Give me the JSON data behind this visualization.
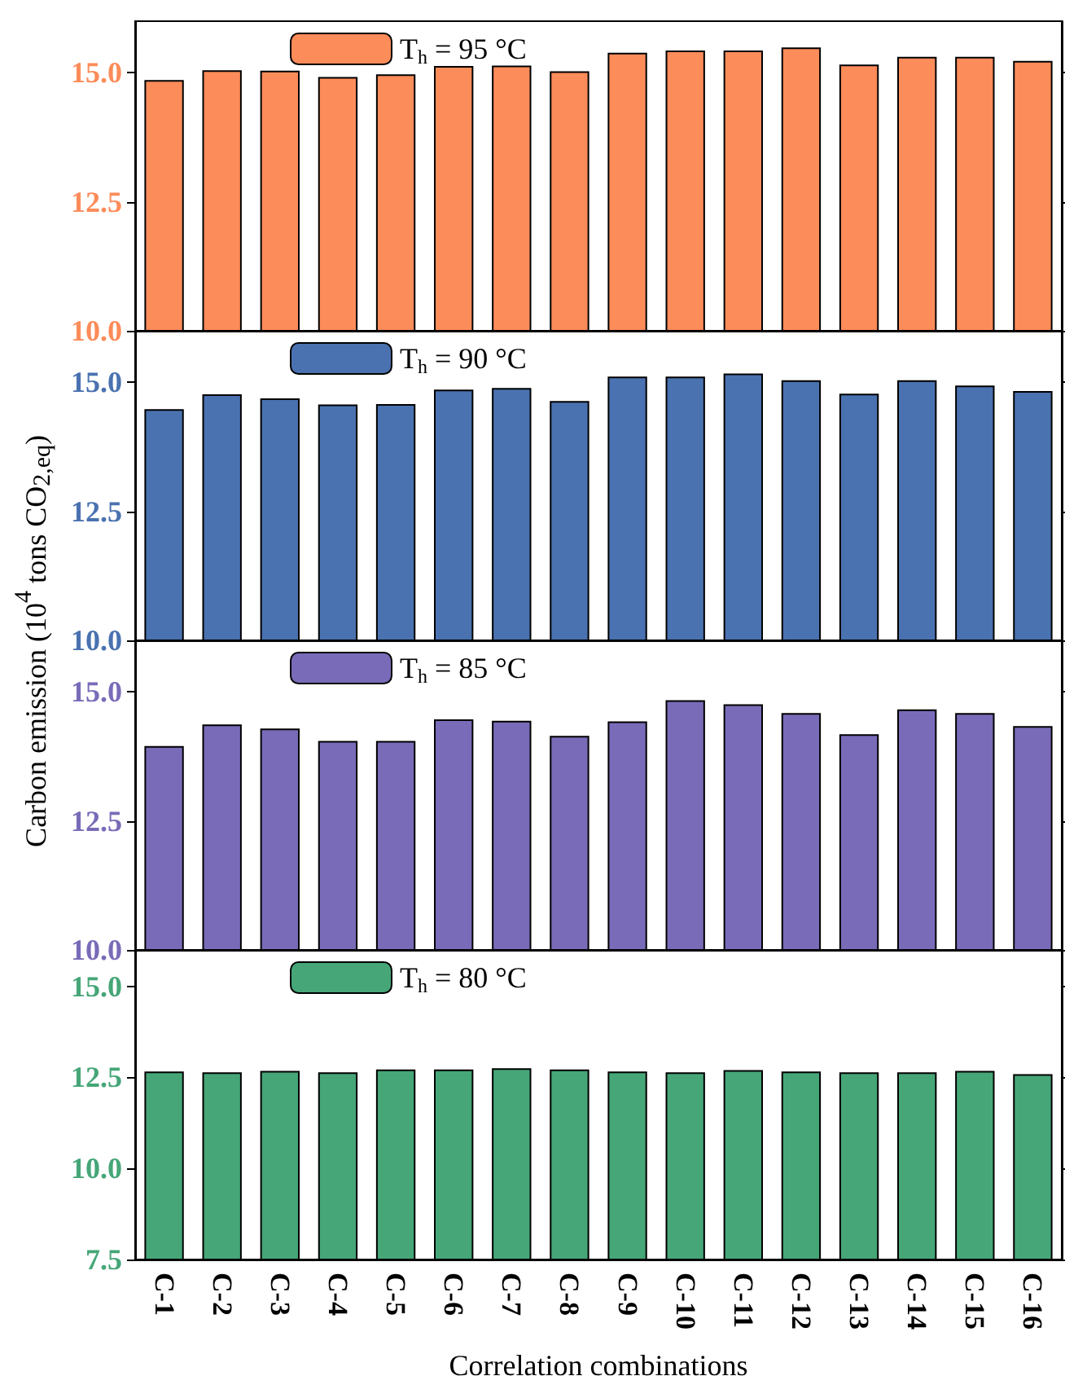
{
  "chart_data": [
    {
      "type": "bar",
      "categories": [
        null,
        null,
        null,
        null,
        null,
        null,
        null,
        null,
        null,
        null,
        null,
        null,
        null,
        null,
        null,
        null
      ],
      "series": [
        {
          "name": "T$_{h}$ = 95 °C",
          "color": "#fc8c5a",
          "values": [
            14.86,
            15.05,
            15.04,
            14.92,
            14.97,
            15.13,
            15.14,
            15.03,
            15.39,
            15.43,
            15.43,
            15.49,
            15.16,
            15.31,
            15.31,
            15.23
          ]
        }
      ],
      "ylim": [
        10,
        16
      ],
      "yticks": [
        {
          "value": 10,
          "label": "10.0"
        },
        {
          "value": 12.5,
          "label": "12.5"
        },
        {
          "value": 15,
          "label": "15.0"
        }
      ],
      "legend": "top left",
      "grid": false
    },
    {
      "type": "bar",
      "ylabel": "Carbon emission (10$^{4}$ tons CO$_{2,eq}$)",
      "categories": [
        null,
        null,
        null,
        null,
        null,
        null,
        null,
        null,
        null,
        null,
        null,
        null,
        null,
        null,
        null,
        null
      ],
      "series": [
        {
          "name": "T$_{h}$ = 90 °C",
          "color": "#4a72b0",
          "values": [
            14.48,
            14.77,
            14.69,
            14.57,
            14.58,
            14.86,
            14.89,
            14.64,
            15.11,
            15.11,
            15.17,
            15.04,
            14.78,
            15.04,
            14.94,
            14.83
          ]
        }
      ],
      "ylim": [
        10,
        16
      ],
      "yticks": [
        {
          "value": 10,
          "label": "10.0"
        },
        {
          "value": 12.5,
          "label": "12.5"
        },
        {
          "value": 15,
          "label": "15.0"
        }
      ],
      "legend": "top left",
      "grid": false
    },
    {
      "type": "bar",
      "categories": [
        null,
        null,
        null,
        null,
        null,
        null,
        null,
        null,
        null,
        null,
        null,
        null,
        null,
        null,
        null,
        null
      ],
      "series": [
        {
          "name": "T$_{h}$ = 85 °C",
          "color": "#7a6bb8",
          "values": [
            13.95,
            14.37,
            14.29,
            14.05,
            14.05,
            14.47,
            14.44,
            14.15,
            14.43,
            14.84,
            14.76,
            14.59,
            14.18,
            14.66,
            14.59,
            14.34
          ]
        }
      ],
      "ylim": [
        10,
        16
      ],
      "yticks": [
        {
          "value": 10,
          "label": "10.0"
        },
        {
          "value": 12.5,
          "label": "12.5"
        },
        {
          "value": 15,
          "label": "15.0"
        }
      ],
      "legend": "top left",
      "grid": false
    },
    {
      "type": "bar",
      "xlabel": "Correlation combinations",
      "categories": [
        "C-1",
        "C-2",
        "C-3",
        "C-4",
        "C-5",
        "C-6",
        "C-7",
        "C-8",
        "C-9",
        "C-10",
        "C-11",
        "C-12",
        "C-13",
        "C-14",
        "C-15",
        "C-16"
      ],
      "series": [
        {
          "name": "T$_{h}$ = 80 °C",
          "color": "#46a678",
          "values": [
            12.66,
            12.64,
            12.68,
            12.64,
            12.72,
            12.72,
            12.75,
            12.72,
            12.66,
            12.64,
            12.7,
            12.66,
            12.64,
            12.64,
            12.68,
            12.59
          ]
        }
      ],
      "ylim": [
        7.5,
        16
      ],
      "yticks": [
        {
          "value": 7.5,
          "label": "7.5"
        },
        {
          "value": 10,
          "label": "10.0"
        },
        {
          "value": 12.5,
          "label": "12.5"
        },
        {
          "value": 15,
          "label": "15.0"
        }
      ],
      "legend": "top left",
      "grid": false
    }
  ]
}
